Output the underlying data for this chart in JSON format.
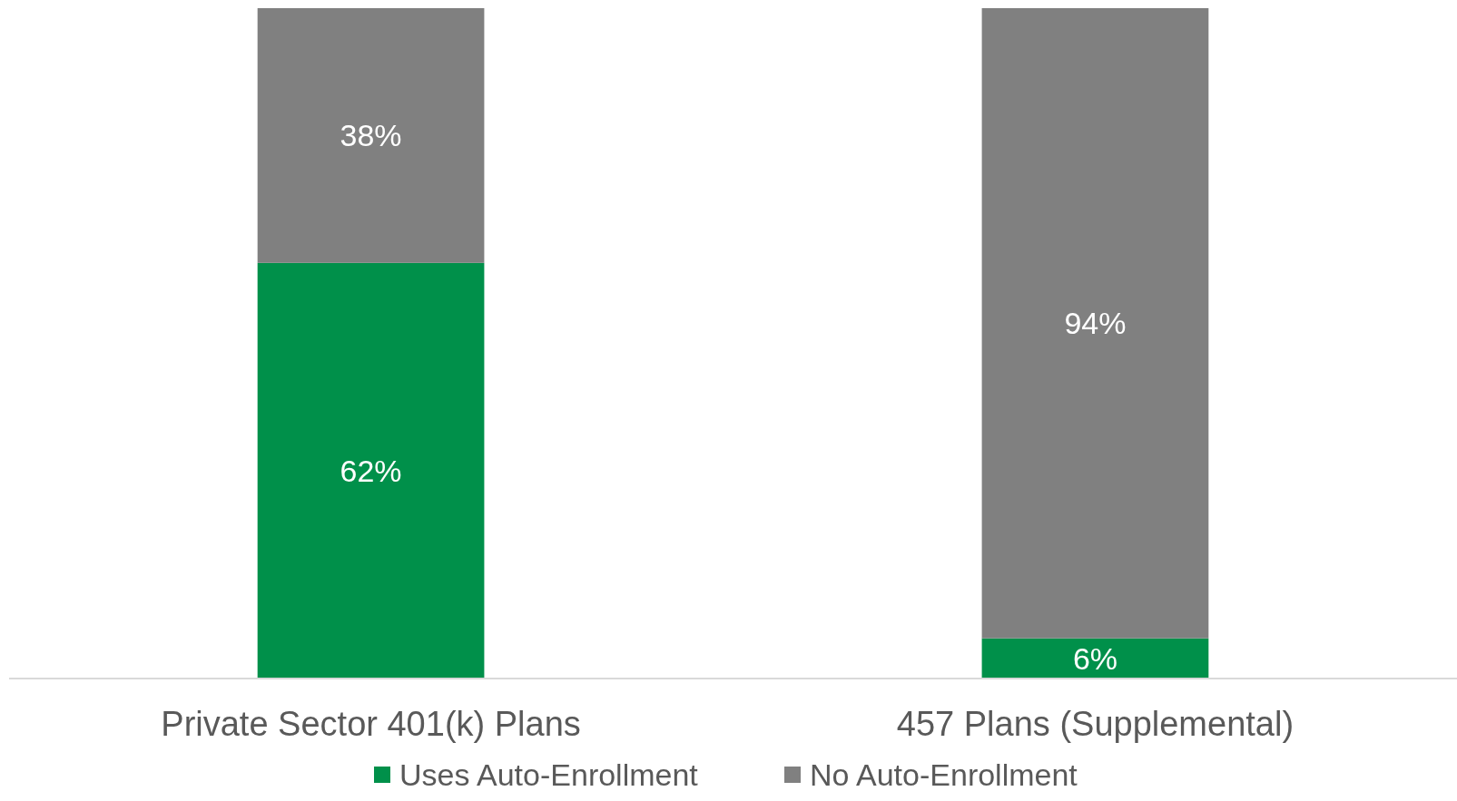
{
  "chart_data": {
    "type": "bar",
    "stacked": true,
    "legend": "bottom",
    "categories": [
      "Private Sector 401(k) Plans",
      "457 Plans (Supplemental)"
    ],
    "series": [
      {
        "name": "Uses Auto-Enrollment",
        "color": "#00904a",
        "values": [
          62,
          6
        ],
        "value_labels": [
          "62%",
          "6%"
        ]
      },
      {
        "name": "No Auto-Enrollment",
        "color": "#808080",
        "values": [
          38,
          94
        ],
        "value_labels": [
          "38%",
          "94%"
        ]
      }
    ]
  }
}
